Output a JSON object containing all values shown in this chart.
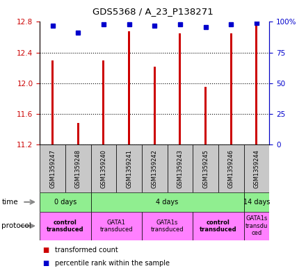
{
  "title": "GDS5368 / A_23_P138271",
  "samples": [
    "GSM1359247",
    "GSM1359248",
    "GSM1359240",
    "GSM1359241",
    "GSM1359242",
    "GSM1359243",
    "GSM1359245",
    "GSM1359246",
    "GSM1359244"
  ],
  "red_values": [
    12.3,
    11.48,
    12.3,
    12.68,
    12.22,
    12.65,
    11.95,
    12.65,
    12.75
  ],
  "blue_values": [
    97,
    91,
    98,
    98,
    97,
    98,
    96,
    98,
    99
  ],
  "ylim_left": [
    11.2,
    12.8
  ],
  "ylim_right": [
    0,
    100
  ],
  "yticks_left": [
    11.2,
    11.6,
    12.0,
    12.4,
    12.8
  ],
  "yticks_right": [
    0,
    25,
    50,
    75,
    100
  ],
  "bar_color": "#cc0000",
  "dot_color": "#0000cc",
  "grid_color": "#000000",
  "background_color": "#ffffff",
  "label_color_left": "#cc0000",
  "label_color_right": "#0000cc",
  "sample_bg": "#c8c8c8",
  "time_color": "#90ee90",
  "protocol_color": "#ff80ff",
  "time_groups": [
    {
      "label": "0 days",
      "start": 0,
      "end": 2
    },
    {
      "label": "4 days",
      "start": 2,
      "end": 8
    },
    {
      "label": "14 days",
      "start": 8,
      "end": 9
    }
  ],
  "protocol_groups": [
    {
      "label": "control\ntransduced",
      "start": 0,
      "end": 2,
      "bold": true
    },
    {
      "label": "GATA1\ntransduced",
      "start": 2,
      "end": 4,
      "bold": false
    },
    {
      "label": "GATA1s\ntransduced",
      "start": 4,
      "end": 6,
      "bold": false
    },
    {
      "label": "control\ntransduced",
      "start": 6,
      "end": 8,
      "bold": true
    },
    {
      "label": "GATA1s\ntransdu\nced",
      "start": 8,
      "end": 9,
      "bold": false
    }
  ]
}
